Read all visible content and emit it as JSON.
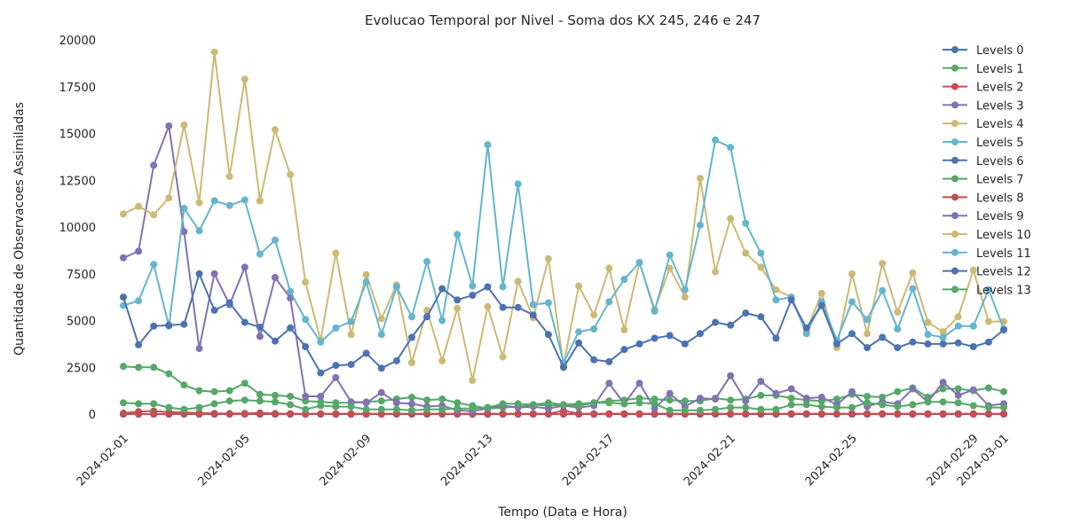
{
  "chart_data": {
    "type": "line",
    "title": "Evolucao Temporal por Nivel - Soma dos KX 245, 246 e 247",
    "xlabel": "Tempo (Data e Hora)",
    "ylabel": "Quantidade de Observacoes Assimiladas",
    "x_ticks": [
      "2024-02-01",
      "2024-02-05",
      "2024-02-09",
      "2024-02-13",
      "2024-02-17",
      "2024-02-21",
      "2024-02-25",
      "2024-02-29",
      "2024-03-01"
    ],
    "y_ticks": [
      "0",
      "2500",
      "5000",
      "7500",
      "10000",
      "12500",
      "15000",
      "17500",
      "20000"
    ],
    "ylim": [
      0,
      20000
    ],
    "xlim": [
      "2024-02-01",
      "2024-03-01"
    ],
    "x_step_hours": 12,
    "grid": false,
    "legend_position": "top-right",
    "colors": [
      "#4c72b0",
      "#55a868",
      "#c44e52",
      "#8172b3",
      "#ccb974",
      "#64b5cd",
      "#4c72b0",
      "#55a868",
      "#c44e52",
      "#8172b3",
      "#ccb974",
      "#64b5cd",
      "#4c72b0",
      "#55a868"
    ],
    "series": [
      {
        "name": "Levels 0",
        "values": [
          0,
          0,
          0,
          0,
          0,
          0,
          0,
          0,
          0,
          0,
          0,
          0,
          0,
          0,
          0,
          0,
          0,
          0,
          0,
          0,
          0,
          0,
          0,
          0,
          0,
          0,
          0,
          0,
          0,
          0,
          0,
          0,
          0,
          0,
          0,
          0,
          0,
          0,
          0,
          0,
          0,
          0,
          0,
          0,
          0,
          0,
          0,
          0,
          0,
          0,
          0,
          0,
          0,
          0,
          0,
          0,
          0,
          0,
          0
        ]
      },
      {
        "name": "Levels 1",
        "values": [
          0,
          0,
          0,
          0,
          0,
          0,
          0,
          0,
          0,
          0,
          0,
          0,
          0,
          0,
          0,
          0,
          0,
          0,
          0,
          0,
          0,
          0,
          0,
          0,
          0,
          0,
          0,
          0,
          0,
          0,
          0,
          0,
          0,
          0,
          0,
          0,
          0,
          0,
          0,
          0,
          0,
          0,
          0,
          0,
          0,
          0,
          0,
          0,
          0,
          0,
          0,
          0,
          0,
          0,
          0,
          0,
          0,
          0,
          0
        ]
      },
      {
        "name": "Levels 2",
        "values": [
          50,
          130,
          160,
          100,
          80,
          60,
          40,
          30,
          40,
          60,
          30,
          20,
          20,
          20,
          20,
          20,
          20,
          20,
          20,
          20,
          20,
          20,
          20,
          20,
          20,
          20,
          20,
          20,
          20,
          180,
          20,
          20,
          20,
          20,
          20,
          20,
          20,
          20,
          20,
          20,
          20,
          20,
          20,
          20,
          20,
          20,
          20,
          20,
          20,
          20,
          20,
          20,
          20,
          20,
          20,
          20,
          20,
          20,
          20
        ]
      },
      {
        "name": "Levels 3",
        "values": [
          0,
          0,
          0,
          0,
          0,
          0,
          0,
          0,
          0,
          0,
          0,
          0,
          0,
          0,
          0,
          0,
          0,
          0,
          0,
          0,
          0,
          0,
          0,
          0,
          0,
          0,
          0,
          0,
          0,
          0,
          0,
          0,
          0,
          0,
          0,
          0,
          0,
          0,
          0,
          0,
          0,
          0,
          0,
          0,
          0,
          0,
          0,
          0,
          0,
          0,
          0,
          0,
          0,
          0,
          0,
          0,
          0,
          0,
          0
        ]
      },
      {
        "name": "Levels 4",
        "values": [
          0,
          0,
          0,
          0,
          0,
          0,
          0,
          0,
          0,
          0,
          0,
          0,
          0,
          0,
          0,
          0,
          0,
          0,
          0,
          0,
          0,
          0,
          0,
          0,
          0,
          0,
          0,
          0,
          0,
          0,
          0,
          0,
          0,
          0,
          0,
          0,
          0,
          0,
          0,
          0,
          0,
          0,
          0,
          0,
          0,
          0,
          0,
          0,
          0,
          0,
          0,
          0,
          0,
          0,
          0,
          0,
          0,
          0,
          0
        ]
      },
      {
        "name": "Levels 5",
        "values": [
          0,
          0,
          0,
          0,
          0,
          0,
          0,
          0,
          0,
          0,
          0,
          0,
          0,
          0,
          0,
          0,
          0,
          0,
          0,
          0,
          0,
          0,
          0,
          0,
          0,
          0,
          0,
          0,
          0,
          0,
          0,
          0,
          0,
          0,
          0,
          0,
          0,
          0,
          0,
          0,
          0,
          0,
          0,
          0,
          0,
          0,
          0,
          0,
          0,
          0,
          0,
          0,
          0,
          0,
          0,
          0,
          0,
          0,
          0
        ]
      },
      {
        "name": "Levels 6",
        "values": [
          0,
          0,
          0,
          0,
          0,
          0,
          0,
          0,
          0,
          0,
          0,
          0,
          0,
          0,
          0,
          0,
          0,
          0,
          0,
          0,
          0,
          0,
          0,
          0,
          0,
          0,
          0,
          0,
          0,
          0,
          0,
          0,
          0,
          0,
          0,
          0,
          0,
          0,
          0,
          0,
          0,
          0,
          0,
          0,
          0,
          0,
          0,
          0,
          0,
          0,
          0,
          0,
          0,
          0,
          0,
          0,
          0,
          0,
          0
        ]
      },
      {
        "name": "Levels 7",
        "values": [
          2550,
          2500,
          2500,
          2150,
          1550,
          1250,
          1200,
          1250,
          1650,
          1050,
          1000,
          950,
          700,
          650,
          600,
          600,
          650,
          700,
          800,
          900,
          750,
          800,
          600,
          450,
          300,
          350,
          400,
          500,
          450,
          500,
          550,
          600,
          700,
          750,
          850,
          800,
          750,
          700,
          700,
          850,
          750,
          800,
          1000,
          1000,
          850,
          750,
          700,
          800,
          1050,
          950,
          900,
          1200,
          1400,
          900,
          1350,
          1350,
          1250,
          1400,
          1200
        ]
      },
      {
        "name": "Levels 8",
        "values": [
          0,
          0,
          0,
          0,
          0,
          0,
          0,
          0,
          0,
          0,
          0,
          0,
          0,
          0,
          0,
          0,
          0,
          0,
          0,
          0,
          0,
          0,
          0,
          0,
          0,
          0,
          0,
          0,
          0,
          0,
          0,
          0,
          0,
          0,
          0,
          0,
          0,
          0,
          0,
          0,
          0,
          0,
          0,
          0,
          0,
          0,
          0,
          0,
          0,
          0,
          0,
          0,
          0,
          0,
          0,
          0,
          0,
          0,
          0
        ]
      },
      {
        "name": "Levels 9",
        "values": [
          8350,
          8700,
          13300,
          15400,
          9750,
          3500,
          7500,
          5850,
          7850,
          4150,
          7300,
          6200,
          950,
          950,
          1950,
          650,
          600,
          1150,
          600,
          550,
          400,
          450,
          200,
          150,
          300,
          450,
          350,
          400,
          300,
          450,
          350,
          450,
          1650,
          550,
          1650,
          300,
          1100,
          400,
          850,
          800,
          2050,
          700,
          1750,
          1100,
          1350,
          850,
          900,
          500,
          1200,
          400,
          650,
          550,
          1350,
          650,
          1700,
          1000,
          1300,
          450,
          550
        ]
      },
      {
        "name": "Levels 10",
        "values": [
          10700,
          11100,
          10650,
          11550,
          15450,
          11300,
          19350,
          12700,
          17900,
          11400,
          15200,
          12800,
          7050,
          3950,
          8600,
          4250,
          7450,
          5100,
          6900,
          2750,
          5550,
          2850,
          5650,
          1800,
          5750,
          3050,
          7100,
          5150,
          8300,
          2600,
          6850,
          5300,
          7800,
          4500,
          8100,
          5600,
          7800,
          6250,
          12600,
          7600,
          10450,
          8600,
          7850,
          6650,
          6250,
          4450,
          6450,
          3550,
          7500,
          4300,
          8050,
          5450,
          7550,
          4900,
          4400,
          5200,
          7700,
          4950,
          4950
        ]
      },
      {
        "name": "Levels 11",
        "values": [
          5800,
          6050,
          8000,
          4700,
          11000,
          9800,
          11400,
          11150,
          11450,
          8550,
          9300,
          6550,
          5050,
          3850,
          4600,
          4950,
          7050,
          4250,
          6800,
          5200,
          8150,
          5000,
          9600,
          6850,
          14400,
          6800,
          12300,
          5850,
          5950,
          2750,
          4400,
          4550,
          6000,
          7200,
          8100,
          5500,
          8500,
          6650,
          10100,
          14650,
          14250,
          10200,
          8600,
          6100,
          6250,
          4300,
          6000,
          3950,
          6000,
          5050,
          6600,
          4550,
          6700,
          4250,
          4100,
          4700,
          4700,
          6650,
          4550
        ]
      },
      {
        "name": "Levels 12",
        "values": [
          6250,
          3700,
          4700,
          4750,
          4800,
          7500,
          5550,
          5950,
          4900,
          4650,
          3900,
          4600,
          3600,
          2200,
          2600,
          2650,
          3250,
          2450,
          2850,
          4100,
          5200,
          6700,
          6100,
          6350,
          6800,
          5700,
          5700,
          5300,
          4250,
          2500,
          3800,
          2900,
          2800,
          3450,
          3750,
          4050,
          4200,
          3750,
          4300,
          4900,
          4750,
          5400,
          5200,
          4050,
          6100,
          4600,
          5800,
          3750,
          4300,
          3550,
          4100,
          3550,
          3850,
          3750,
          3750,
          3800,
          3600,
          3850,
          4500
        ]
      },
      {
        "name": "Levels 13",
        "values": [
          600,
          550,
          550,
          350,
          250,
          350,
          550,
          700,
          750,
          700,
          650,
          500,
          250,
          450,
          400,
          400,
          250,
          250,
          250,
          200,
          250,
          250,
          300,
          300,
          350,
          550,
          550,
          500,
          600,
          500,
          450,
          600,
          600,
          550,
          600,
          550,
          200,
          200,
          200,
          250,
          350,
          350,
          250,
          250,
          500,
          500,
          400,
          350,
          350,
          600,
          500,
          400,
          500,
          650,
          650,
          600,
          450,
          350,
          350
        ]
      }
    ]
  }
}
